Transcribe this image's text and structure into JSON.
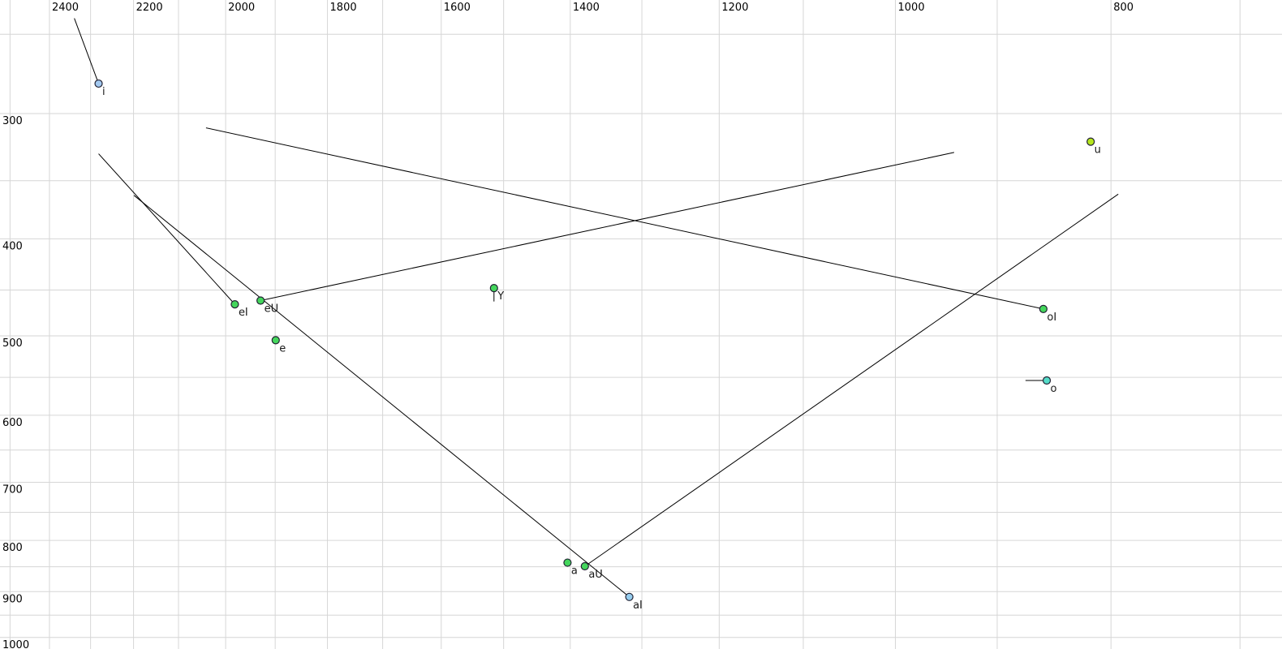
{
  "chart_data": {
    "type": "scatter",
    "title": "",
    "xlabel": "",
    "ylabel": "",
    "x_axis": {
      "unit": "Hz",
      "scale": "log",
      "reversed": true,
      "tick_labels": [
        2400,
        2200,
        2000,
        1800,
        1600,
        1400,
        1200,
        1000,
        800
      ],
      "gridline_values": [
        2500,
        2400,
        2300,
        2200,
        2100,
        2000,
        1900,
        1800,
        1700,
        1600,
        1500,
        1400,
        1300,
        1200,
        1100,
        1000,
        900,
        800,
        700
      ],
      "range": [
        2530,
        680
      ]
    },
    "y_axis": {
      "unit": "Hz",
      "scale": "log",
      "reversed": false,
      "tick_labels": [
        300,
        400,
        500,
        600,
        700,
        800,
        900,
        1000
      ],
      "gridline_values": [
        250,
        300,
        350,
        400,
        450,
        500,
        550,
        600,
        650,
        700,
        750,
        800,
        850,
        900,
        950,
        1000
      ],
      "range": [
        230,
        1030
      ]
    },
    "points": [
      {
        "label": "i",
        "f2": 2281,
        "f1": 280,
        "color_key": "lightblue_i",
        "glide_to": {
          "f2": 2339,
          "f1": 241
        }
      },
      {
        "label": "u",
        "f2": 817,
        "f1": 320,
        "color_key": "yellowgreen",
        "glide_to": null
      },
      {
        "label": "eI",
        "f2": 1981,
        "f1": 465,
        "color_key": "green",
        "glide_to": {
          "f2": 2281,
          "f1": 329
        }
      },
      {
        "label": "eU",
        "f2": 1929,
        "f1": 461,
        "color_key": "green",
        "glide_to": {
          "f2": 941,
          "f1": 328
        }
      },
      {
        "label": "e",
        "f2": 1899,
        "f1": 505,
        "color_key": "green",
        "glide_to": null
      },
      {
        "label": "Y",
        "f2": 1515,
        "f1": 448,
        "color_key": "green",
        "glide_to": {
          "f2": 1515,
          "f1": 462
        }
      },
      {
        "label": "oI",
        "f2": 858,
        "f1": 470,
        "color_key": "green",
        "glide_to": {
          "f2": 2041,
          "f1": 310
        }
      },
      {
        "label": "o",
        "f2": 855,
        "f1": 554,
        "color_key": "turquoise",
        "glide_to": {
          "f2": 874,
          "f1": 554
        }
      },
      {
        "label": "a",
        "f2": 1404,
        "f1": 842,
        "color_key": "green",
        "glide_to": null
      },
      {
        "label": "aU",
        "f2": 1379,
        "f1": 849,
        "color_key": "green",
        "glide_to": {
          "f2": 794,
          "f1": 361
        }
      },
      {
        "label": "aI",
        "f2": 1317,
        "f1": 911,
        "color_key": "lightblue_aI",
        "glide_to": {
          "f2": 2199,
          "f1": 362
        }
      }
    ],
    "legend": null,
    "grid": true
  },
  "colors": {
    "background": "#ffffff",
    "gridline": "#d6d6d6",
    "trajectory": "#000000",
    "dot_outline": "#222233",
    "tick_text": "#000000",
    "point_label_text": "#1a1a1a",
    "green": "#44d65c",
    "lightblue_i": "#a3c9f0",
    "lightblue_aI": "#96cdee",
    "turquoise": "#55dcc8",
    "yellowgreen": "#b5e61d"
  }
}
